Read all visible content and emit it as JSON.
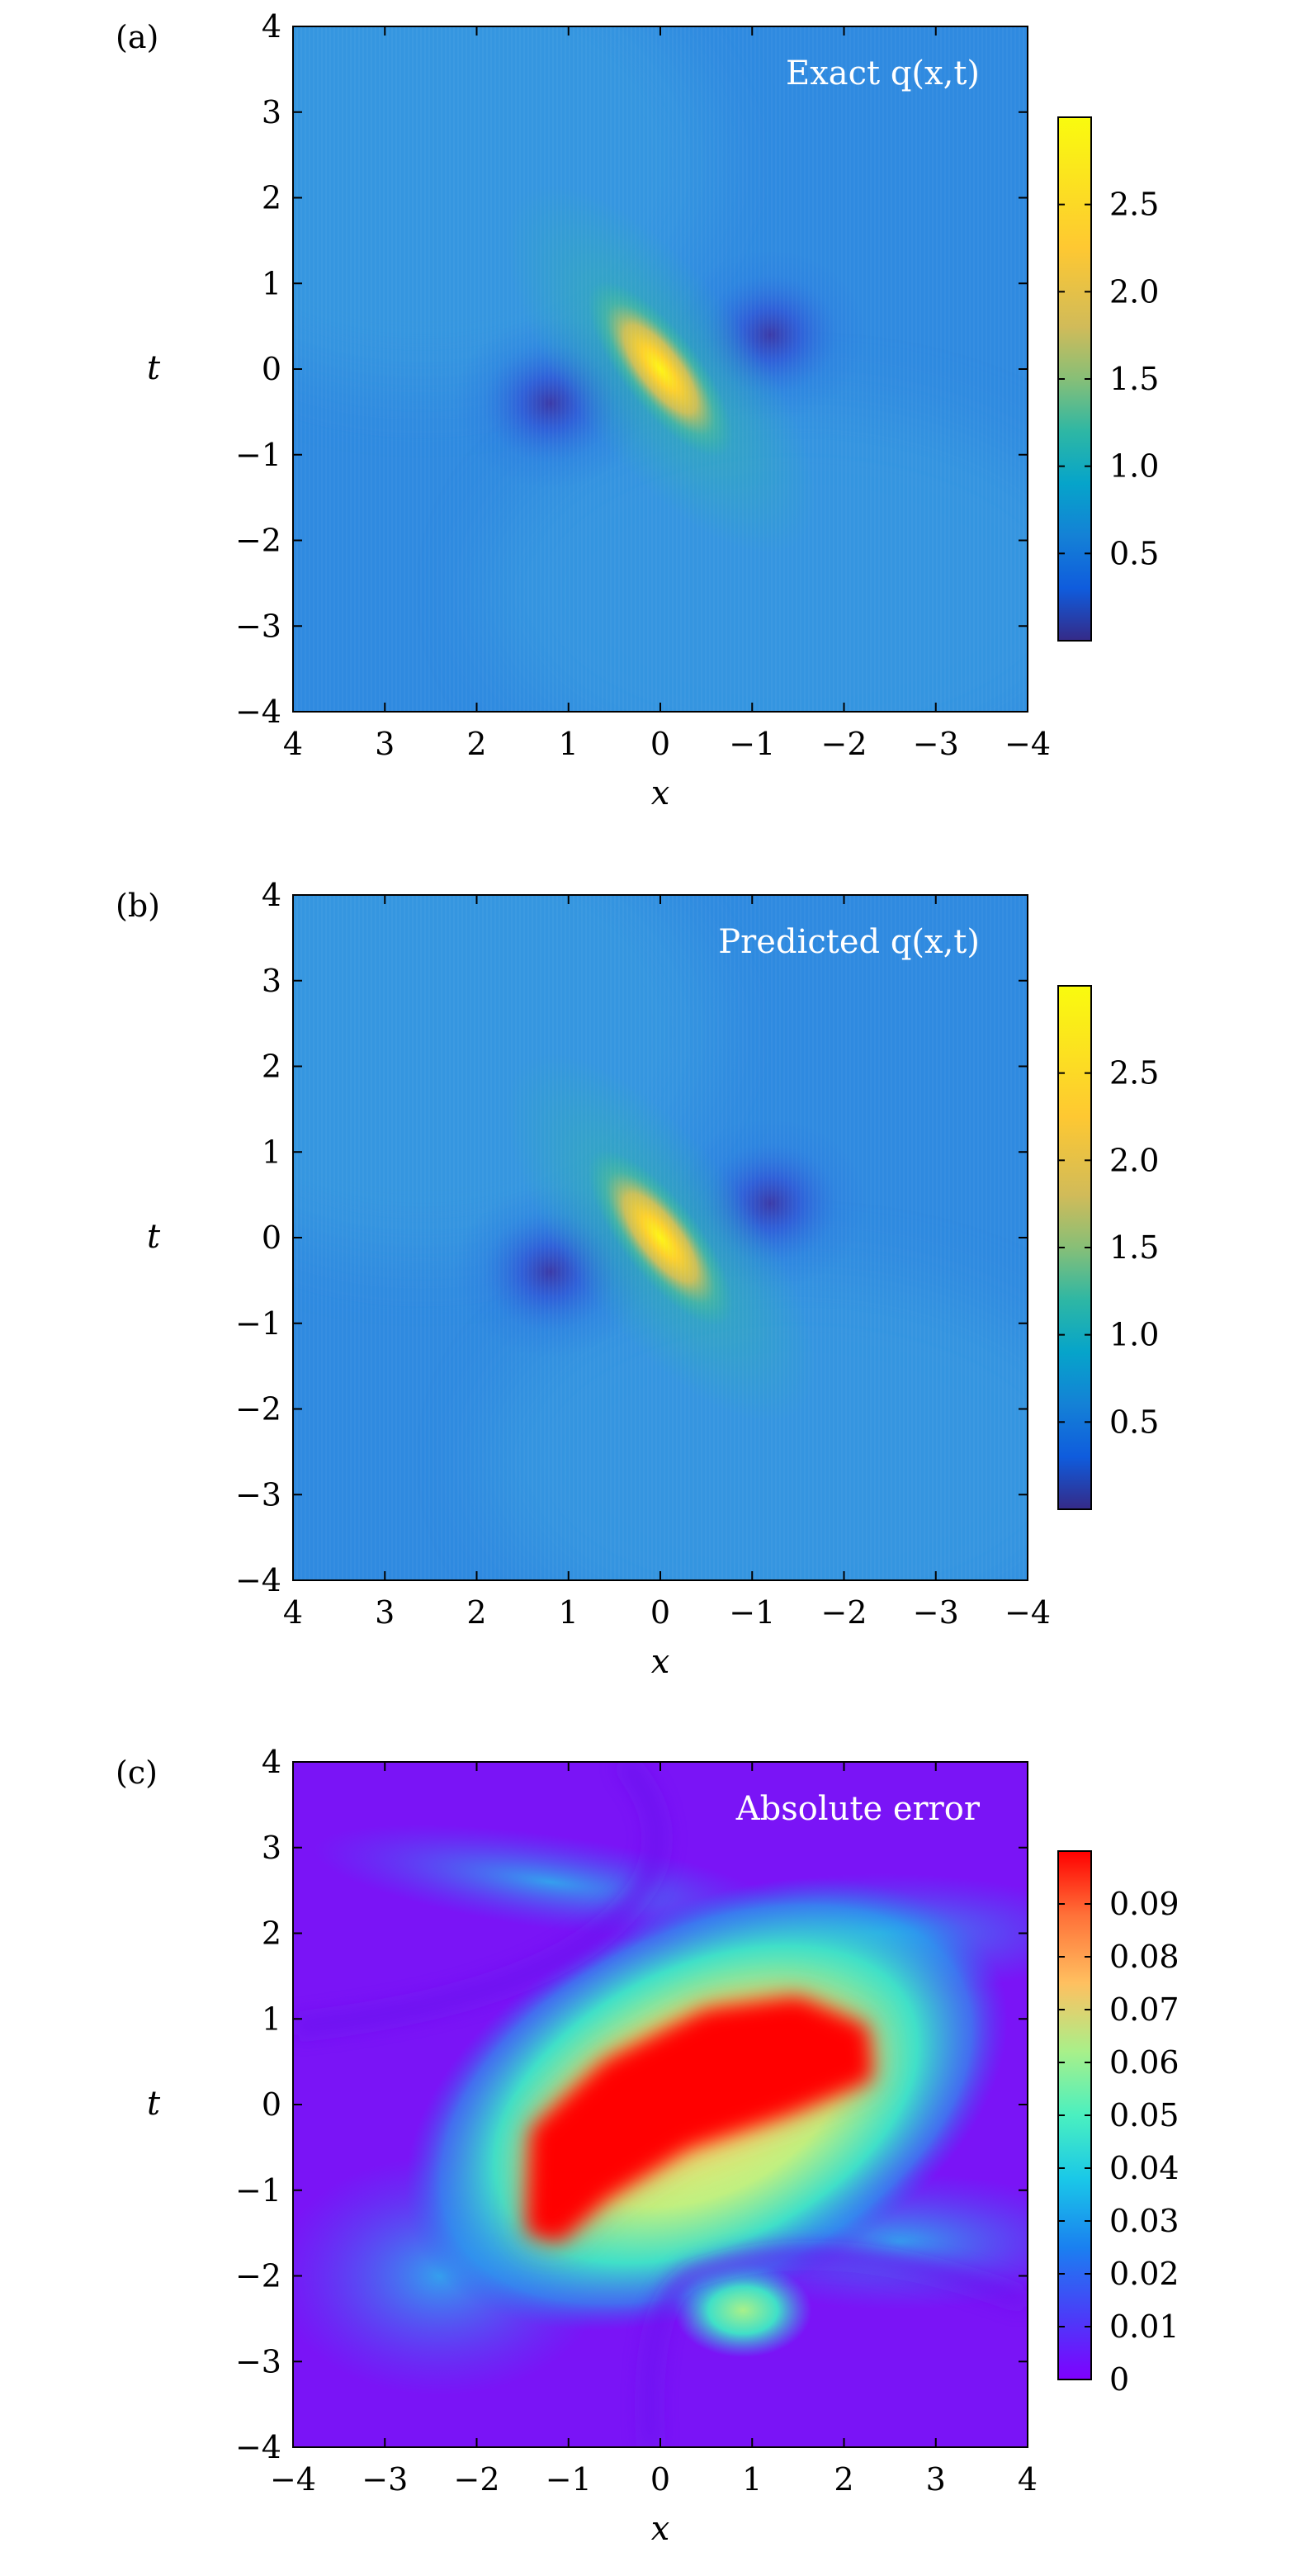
{
  "chart_data": [
    {
      "type": "heatmap",
      "panel_label": "(a)",
      "title": "Exact q(x,t)",
      "xlabel": "x",
      "ylabel": "t",
      "xlim": [
        4,
        -4
      ],
      "ylim": [
        -4,
        4
      ],
      "x_ticks": [
        "4",
        "3",
        "2",
        "1",
        "0",
        "−1",
        "−2",
        "−3",
        "−4"
      ],
      "y_ticks": [
        "−4",
        "−3",
        "−2",
        "−1",
        "0",
        "1",
        "2",
        "3",
        "4"
      ],
      "colormap": "parula",
      "colorbar": {
        "range": [
          0.0,
          3.0
        ],
        "ticks": [
          "0.5",
          "1.0",
          "1.5",
          "2.0",
          "2.5"
        ],
        "tick_values": [
          0.5,
          1.0,
          1.5,
          2.0,
          2.5
        ]
      },
      "grid": false,
      "features": [
        {
          "kind": "peak",
          "x": 0.0,
          "t": 0.0,
          "value": 2.95
        },
        {
          "kind": "trough",
          "x": 1.2,
          "t": -0.4,
          "value": 0.1
        },
        {
          "kind": "trough",
          "x": -1.2,
          "t": 0.4,
          "value": 0.1
        }
      ],
      "background_value": 1.0
    },
    {
      "type": "heatmap",
      "panel_label": "(b)",
      "title": "Predicted q(x,t)",
      "xlabel": "x",
      "ylabel": "t",
      "xlim": [
        4,
        -4
      ],
      "ylim": [
        -4,
        4
      ],
      "x_ticks": [
        "4",
        "3",
        "2",
        "1",
        "0",
        "−1",
        "−2",
        "−3",
        "−4"
      ],
      "y_ticks": [
        "−4",
        "−3",
        "−2",
        "−1",
        "0",
        "1",
        "2",
        "3",
        "4"
      ],
      "colormap": "parula",
      "colorbar": {
        "range": [
          0.0,
          3.0
        ],
        "ticks": [
          "0.5",
          "1.0",
          "1.5",
          "2.0",
          "2.5"
        ],
        "tick_values": [
          0.5,
          1.0,
          1.5,
          2.0,
          2.5
        ]
      },
      "grid": false,
      "features": [
        {
          "kind": "peak",
          "x": 0.0,
          "t": 0.0,
          "value": 2.95
        },
        {
          "kind": "trough",
          "x": 1.2,
          "t": -0.4,
          "value": 0.1
        },
        {
          "kind": "trough",
          "x": -1.2,
          "t": 0.4,
          "value": 0.1
        }
      ],
      "background_value": 1.0
    },
    {
      "type": "heatmap",
      "panel_label": "(c)",
      "title": "Absolute error",
      "xlabel": "x",
      "ylabel": "t",
      "xlim": [
        -4,
        4
      ],
      "ylim": [
        -4,
        4
      ],
      "x_ticks": [
        "−4",
        "−3",
        "−2",
        "−1",
        "0",
        "1",
        "2",
        "3",
        "4"
      ],
      "y_ticks": [
        "−4",
        "−3",
        "−2",
        "−1",
        "0",
        "1",
        "2",
        "3",
        "4"
      ],
      "colormap": "rainbow",
      "colorbar": {
        "range": [
          0.0,
          0.1
        ],
        "ticks": [
          "0",
          "0.01",
          "0.02",
          "0.03",
          "0.04",
          "0.05",
          "0.06",
          "0.07",
          "0.08",
          "0.09"
        ],
        "tick_values": [
          0,
          0.01,
          0.02,
          0.03,
          0.04,
          0.05,
          0.06,
          0.07,
          0.08,
          0.09
        ]
      },
      "grid": false,
      "features": [
        {
          "kind": "max_region",
          "x": 0.5,
          "t": 0.0,
          "value": 0.1
        },
        {
          "kind": "local_max",
          "x": 0.9,
          "t": -2.4,
          "value": 0.055
        }
      ],
      "background_value": 0.005
    }
  ]
}
